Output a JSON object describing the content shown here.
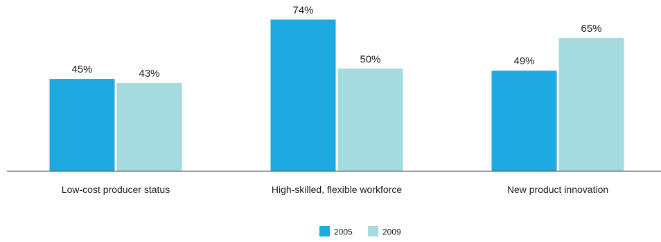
{
  "chart_data": {
    "type": "bar",
    "categories": [
      "Low-cost producer status",
      "High-skilled, flexible workforce",
      "New product innovation"
    ],
    "series": [
      {
        "name": "2005",
        "values": [
          45,
          74,
          49
        ],
        "labels": [
          "45%",
          "74%",
          "49%"
        ],
        "color": "#1fa9e1"
      },
      {
        "name": "2009",
        "values": [
          43,
          50,
          65
        ],
        "labels": [
          "43%",
          "50%",
          "65%"
        ],
        "color": "#a3dbdf"
      }
    ],
    "ylim": [
      0,
      81
    ],
    "grid": false,
    "legend_position": "bottom-center",
    "axis_color": "#444444",
    "text_color": "#1a1a1a"
  }
}
